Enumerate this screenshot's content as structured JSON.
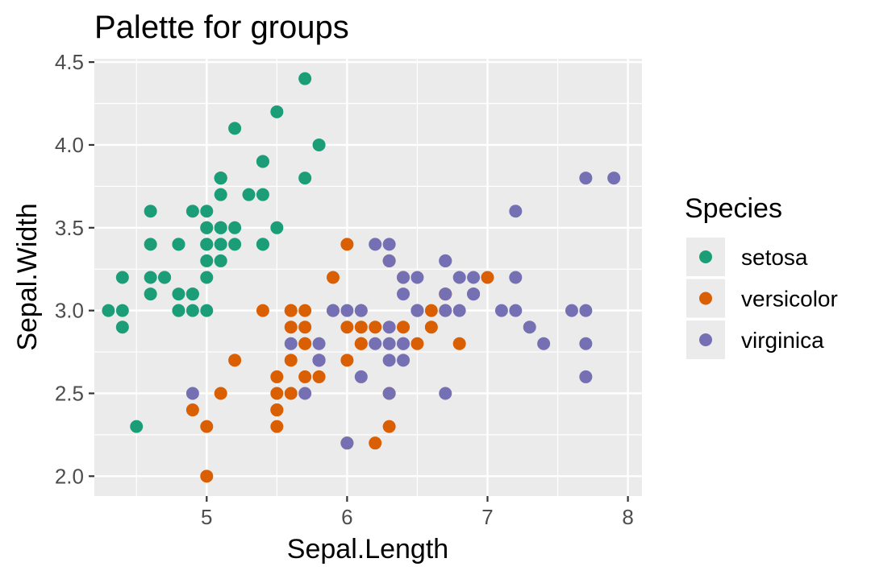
{
  "chart_data": {
    "type": "scatter",
    "title": "Palette for groups",
    "xlabel": "Sepal.Length",
    "ylabel": "Sepal.Width",
    "xlim": [
      4.2,
      8.1
    ],
    "ylim": [
      1.88,
      4.52
    ],
    "x_ticks": [
      5,
      6,
      7,
      8
    ],
    "x_tick_labels": [
      "5",
      "6",
      "7",
      "8"
    ],
    "y_ticks": [
      2.0,
      2.5,
      3.0,
      3.5,
      4.0,
      4.5
    ],
    "y_tick_labels": [
      "2.0",
      "2.5",
      "3.0",
      "3.5",
      "4.0",
      "4.5"
    ],
    "grid": true,
    "legend": {
      "title": "Species",
      "position": "right"
    },
    "series": [
      {
        "name": "setosa",
        "color": "#1b9e77",
        "points": [
          [
            5.1,
            3.5
          ],
          [
            4.9,
            3.0
          ],
          [
            4.7,
            3.2
          ],
          [
            4.6,
            3.1
          ],
          [
            5.0,
            3.6
          ],
          [
            5.4,
            3.9
          ],
          [
            4.6,
            3.4
          ],
          [
            5.0,
            3.4
          ],
          [
            4.4,
            2.9
          ],
          [
            4.9,
            3.1
          ],
          [
            5.4,
            3.7
          ],
          [
            4.8,
            3.4
          ],
          [
            4.8,
            3.0
          ],
          [
            4.3,
            3.0
          ],
          [
            5.8,
            4.0
          ],
          [
            5.7,
            4.4
          ],
          [
            5.4,
            3.9
          ],
          [
            5.1,
            3.5
          ],
          [
            5.7,
            3.8
          ],
          [
            5.1,
            3.8
          ],
          [
            5.4,
            3.4
          ],
          [
            5.1,
            3.7
          ],
          [
            4.6,
            3.6
          ],
          [
            5.1,
            3.3
          ],
          [
            4.8,
            3.4
          ],
          [
            5.0,
            3.0
          ],
          [
            5.0,
            3.4
          ],
          [
            5.2,
            3.5
          ],
          [
            5.2,
            3.4
          ],
          [
            4.7,
            3.2
          ],
          [
            4.8,
            3.1
          ],
          [
            5.4,
            3.4
          ],
          [
            5.2,
            4.1
          ],
          [
            5.5,
            4.2
          ],
          [
            4.9,
            3.1
          ],
          [
            5.0,
            3.2
          ],
          [
            5.5,
            3.5
          ],
          [
            4.9,
            3.6
          ],
          [
            4.4,
            3.0
          ],
          [
            5.1,
            3.4
          ],
          [
            5.0,
            3.5
          ],
          [
            4.5,
            2.3
          ],
          [
            4.4,
            3.2
          ],
          [
            5.0,
            3.5
          ],
          [
            5.1,
            3.8
          ],
          [
            4.8,
            3.0
          ],
          [
            5.1,
            3.8
          ],
          [
            4.6,
            3.2
          ],
          [
            5.3,
            3.7
          ],
          [
            5.0,
            3.3
          ]
        ]
      },
      {
        "name": "versicolor",
        "color": "#d95f02",
        "points": [
          [
            7.0,
            3.2
          ],
          [
            6.4,
            3.2
          ],
          [
            6.9,
            3.1
          ],
          [
            5.5,
            2.3
          ],
          [
            6.5,
            2.8
          ],
          [
            5.7,
            2.8
          ],
          [
            6.3,
            3.3
          ],
          [
            4.9,
            2.4
          ],
          [
            6.6,
            2.9
          ],
          [
            5.2,
            2.7
          ],
          [
            5.0,
            2.0
          ],
          [
            5.9,
            3.0
          ],
          [
            6.0,
            2.2
          ],
          [
            6.1,
            2.9
          ],
          [
            5.6,
            2.9
          ],
          [
            6.7,
            3.1
          ],
          [
            5.6,
            3.0
          ],
          [
            5.8,
            2.7
          ],
          [
            6.2,
            2.2
          ],
          [
            5.6,
            2.5
          ],
          [
            5.9,
            3.2
          ],
          [
            6.1,
            2.8
          ],
          [
            6.3,
            2.5
          ],
          [
            6.1,
            2.8
          ],
          [
            6.4,
            2.9
          ],
          [
            6.6,
            3.0
          ],
          [
            6.8,
            2.8
          ],
          [
            6.7,
            3.0
          ],
          [
            6.0,
            2.9
          ],
          [
            5.7,
            2.6
          ],
          [
            5.5,
            2.4
          ],
          [
            5.5,
            2.4
          ],
          [
            5.8,
            2.7
          ],
          [
            6.0,
            2.7
          ],
          [
            5.4,
            3.0
          ],
          [
            6.0,
            3.4
          ],
          [
            6.7,
            3.1
          ],
          [
            6.3,
            2.3
          ],
          [
            5.6,
            3.0
          ],
          [
            5.5,
            2.5
          ],
          [
            5.5,
            2.6
          ],
          [
            6.1,
            3.0
          ],
          [
            5.8,
            2.6
          ],
          [
            5.0,
            2.3
          ],
          [
            5.6,
            2.7
          ],
          [
            5.7,
            3.0
          ],
          [
            5.7,
            2.9
          ],
          [
            6.2,
            2.9
          ],
          [
            5.1,
            2.5
          ],
          [
            5.7,
            2.8
          ]
        ]
      },
      {
        "name": "virginica",
        "color": "#7570b3",
        "points": [
          [
            6.3,
            3.3
          ],
          [
            5.8,
            2.7
          ],
          [
            7.1,
            3.0
          ],
          [
            6.3,
            2.9
          ],
          [
            6.5,
            3.0
          ],
          [
            7.6,
            3.0
          ],
          [
            4.9,
            2.5
          ],
          [
            7.3,
            2.9
          ],
          [
            6.7,
            2.5
          ],
          [
            7.2,
            3.6
          ],
          [
            6.5,
            3.2
          ],
          [
            6.4,
            2.7
          ],
          [
            6.8,
            3.0
          ],
          [
            5.7,
            2.5
          ],
          [
            5.8,
            2.8
          ],
          [
            6.4,
            3.2
          ],
          [
            6.5,
            3.0
          ],
          [
            7.7,
            3.8
          ],
          [
            7.7,
            2.6
          ],
          [
            6.0,
            2.2
          ],
          [
            6.9,
            3.2
          ],
          [
            5.6,
            2.8
          ],
          [
            7.7,
            2.8
          ],
          [
            6.3,
            2.7
          ],
          [
            6.7,
            3.3
          ],
          [
            7.2,
            3.2
          ],
          [
            6.2,
            2.8
          ],
          [
            6.1,
            3.0
          ],
          [
            6.4,
            2.8
          ],
          [
            7.2,
            3.0
          ],
          [
            7.4,
            2.8
          ],
          [
            7.9,
            3.8
          ],
          [
            6.4,
            2.8
          ],
          [
            6.3,
            2.8
          ],
          [
            6.1,
            2.6
          ],
          [
            7.7,
            3.0
          ],
          [
            6.3,
            3.4
          ],
          [
            6.4,
            3.1
          ],
          [
            6.0,
            3.0
          ],
          [
            6.9,
            3.1
          ],
          [
            6.7,
            3.1
          ],
          [
            6.9,
            3.1
          ],
          [
            5.8,
            2.7
          ],
          [
            6.8,
            3.2
          ],
          [
            6.7,
            3.3
          ],
          [
            6.7,
            3.0
          ],
          [
            6.3,
            2.5
          ],
          [
            6.5,
            3.0
          ],
          [
            6.2,
            3.4
          ],
          [
            5.9,
            3.0
          ]
        ]
      }
    ]
  }
}
